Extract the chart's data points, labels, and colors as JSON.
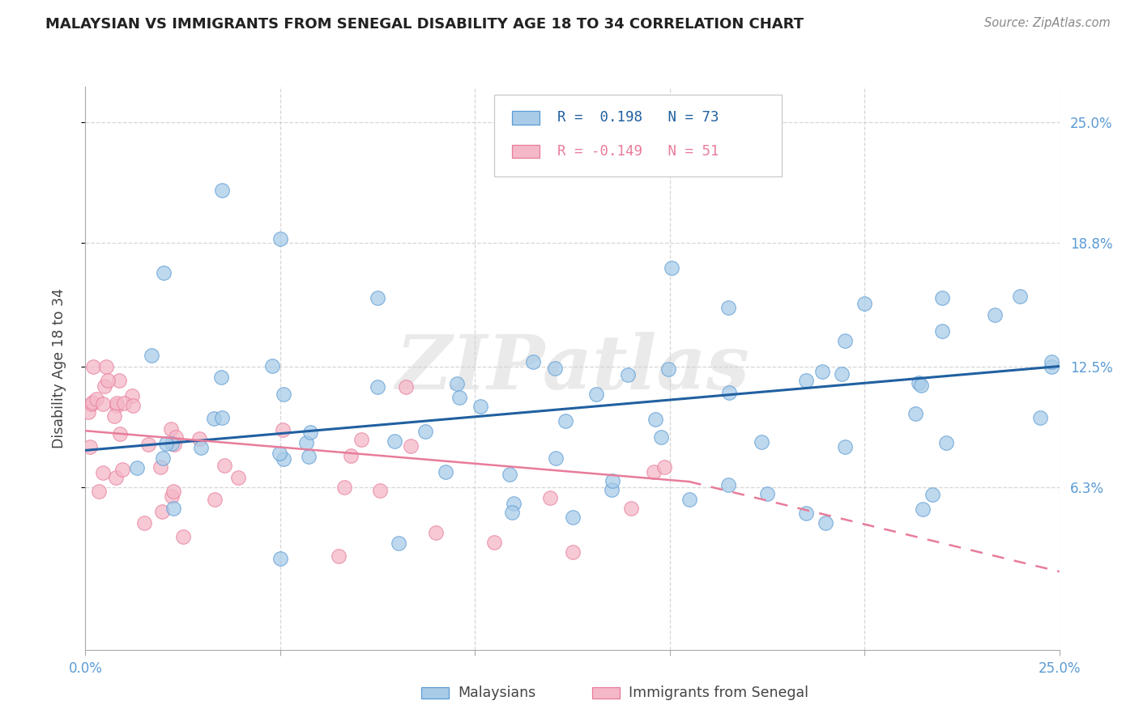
{
  "title": "MALAYSIAN VS IMMIGRANTS FROM SENEGAL DISABILITY AGE 18 TO 34 CORRELATION CHART",
  "source": "Source: ZipAtlas.com",
  "ylabel": "Disability Age 18 to 34",
  "ytick_vals": [
    0.063,
    0.125,
    0.188,
    0.25
  ],
  "ytick_labels": [
    "6.3%",
    "12.5%",
    "18.8%",
    "25.0%"
  ],
  "xmin": 0.0,
  "xmax": 0.25,
  "ymin": -0.02,
  "ymax": 0.268,
  "legend_blue_r": "R =  0.198",
  "legend_blue_n": "N = 73",
  "legend_pink_r": "R = -0.149",
  "legend_pink_n": "N = 51",
  "legend_label_blue": "Malaysians",
  "legend_label_pink": "Immigrants from Senegal",
  "watermark": "ZIPatlas",
  "blue_fill": "#a8cce8",
  "blue_edge": "#5b9bd5",
  "pink_fill": "#f4b8c8",
  "pink_edge": "#e87c9a",
  "blue_line": "#2060a0",
  "pink_line": "#e87c9a",
  "grid_color": "#cccccc",
  "title_color": "#222222",
  "source_color": "#888888",
  "axis_label_color": "#5b9bd5",
  "ylabel_color": "#444444",
  "blue_trend": [
    0.0,
    0.082,
    0.25,
    0.125
  ],
  "pink_trend_solid": [
    0.0,
    0.092,
    0.155,
    0.066
  ],
  "pink_trend_dash": [
    0.155,
    0.066,
    0.25,
    0.02
  ]
}
